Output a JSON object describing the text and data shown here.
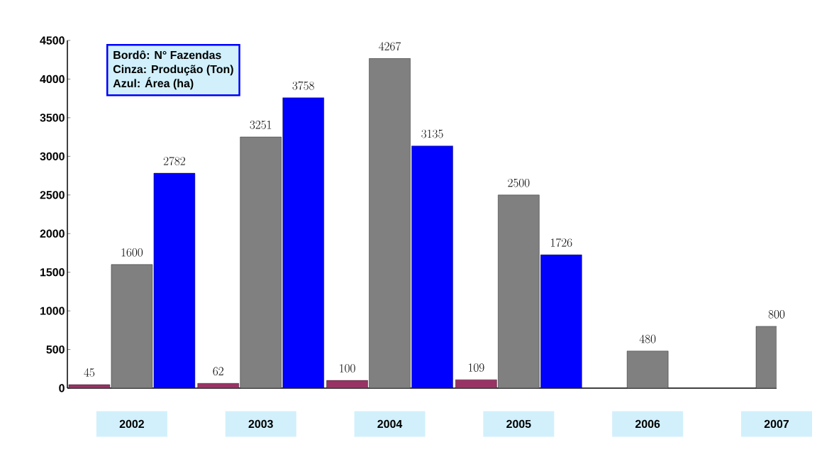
{
  "chart_data": {
    "type": "bar",
    "categories": [
      "2002",
      "2003",
      "2004",
      "2005",
      "2006",
      "2007"
    ],
    "series": [
      {
        "color": "#993366",
        "values": [
          45,
          62,
          100,
          109,
          null,
          null
        ]
      },
      {
        "color": "#808080",
        "values": [
          1600,
          3251,
          4267,
          2500,
          480,
          800
        ]
      },
      {
        "color": "#0000ff",
        "values": [
          2782,
          3758,
          3135,
          1726,
          null,
          null
        ]
      }
    ],
    "ylim": [
      0,
      4500
    ],
    "yticks": [
      0,
      500,
      1000,
      1500,
      2000,
      2500,
      3000,
      3500,
      4000,
      4500
    ],
    "data_labels": true,
    "grid": false,
    "annotations": [
      "Bordô: N° Fazendas",
      "Cinza: Produção (Ton)",
      "Azul: Área (ha)"
    ]
  }
}
